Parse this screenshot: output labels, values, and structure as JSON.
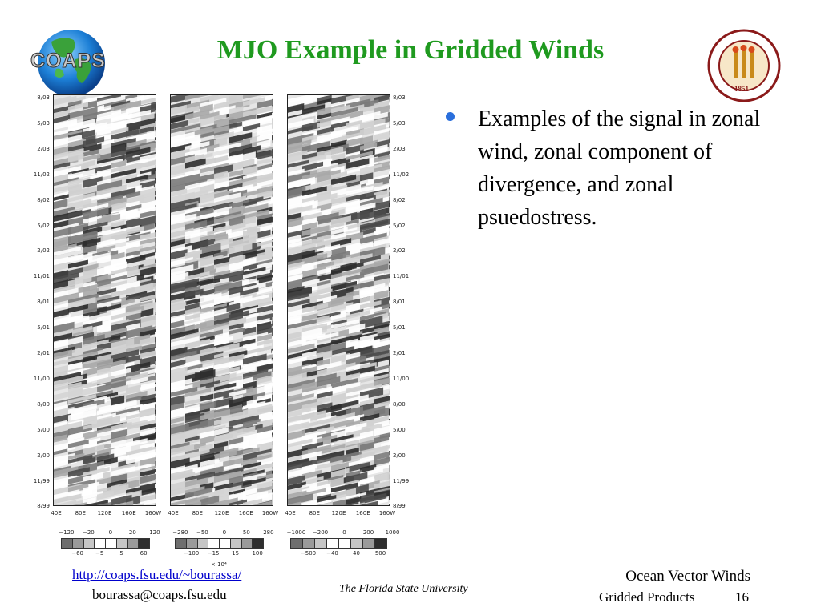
{
  "slide": {
    "title": "MJO Example in Gridded Winds",
    "logo_left_text": "COAPS",
    "seal_top_text": "FLORIDA STATE UNIVERSITY",
    "seal_year": "1851",
    "bullet_text": "Examples of the signal in zonal wind, zonal component of divergence, and zonal psuedostress."
  },
  "figure": {
    "y_tick_labels": [
      "8/03",
      "5/03",
      "2/03",
      "11/02",
      "8/02",
      "5/02",
      "2/02",
      "11/01",
      "8/01",
      "5/01",
      "2/01",
      "11/00",
      "8/00",
      "5/00",
      "2/00",
      "11/99",
      "8/99"
    ],
    "x_tick_labels": [
      "40E",
      "80E",
      "120E",
      "160E",
      "160W"
    ],
    "colorbars": [
      {
        "top_labels": [
          "−120",
          "−20",
          "0",
          "20",
          "120"
        ],
        "bottom_labels": [
          "−60",
          "−5",
          "5",
          "60"
        ]
      },
      {
        "top_labels": [
          "−280",
          "−50",
          "0",
          "50",
          "280"
        ],
        "bottom_labels": [
          "−100",
          "−15",
          "15",
          "100"
        ]
      },
      {
        "top_labels": [
          "−1000",
          "−200",
          "0",
          "200",
          "1000"
        ],
        "bottom_labels": [
          "−500",
          "−40",
          "40",
          "500"
        ]
      }
    ],
    "colorbar_fills": [
      "#6e6e6e",
      "#9a9a9a",
      "#c6c6c6",
      "#ffffff",
      "#ffffff",
      "#c6c6c6",
      "#9a9a9a",
      "#2e2e2e"
    ],
    "exponent_label": "× 10⁴"
  },
  "footer": {
    "link": "http://coaps.fsu.edu/~bourassa/",
    "email": "bourassa@coaps.fsu.edu",
    "center": "The Florida State University",
    "right_line1": "Ocean Vector Winds",
    "right_line2": "Gridded Products",
    "page_number": "16"
  }
}
